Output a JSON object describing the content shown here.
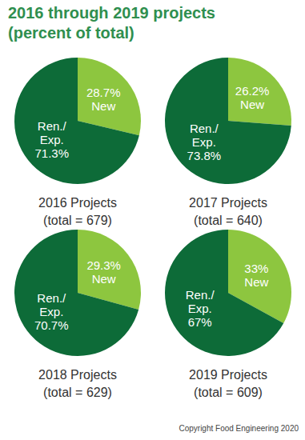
{
  "title": "2016 through 2019 projects (percent of total)",
  "copyright": "Copyright Food Engineering 2020",
  "chart_data": [
    {
      "type": "pie",
      "title": "2016 Projects",
      "subtitle": "(total = 679)",
      "categories": [
        "New",
        "Ren./ Exp."
      ],
      "values": [
        28.7,
        71.3
      ],
      "value_labels": [
        "28.7%",
        "71.3%"
      ],
      "colors": [
        "#8dc63f",
        "#0d6b38"
      ],
      "data_labels": true
    },
    {
      "type": "pie",
      "title": "2017 Projects",
      "subtitle": "(total = 640)",
      "categories": [
        "New",
        "Ren./ Exp."
      ],
      "values": [
        26.2,
        73.8
      ],
      "value_labels": [
        "26.2%",
        "73.8%"
      ],
      "colors": [
        "#8dc63f",
        "#0d6b38"
      ],
      "data_labels": true
    },
    {
      "type": "pie",
      "title": "2018 Projects",
      "subtitle": "(total = 629)",
      "categories": [
        "New",
        "Ren./ Exp."
      ],
      "values": [
        29.3,
        70.7
      ],
      "value_labels": [
        "29.3%",
        "70.7%"
      ],
      "colors": [
        "#8dc63f",
        "#0d6b38"
      ],
      "data_labels": true
    },
    {
      "type": "pie",
      "title": "2019 Projects",
      "subtitle": "(total = 609)",
      "categories": [
        "New",
        "Ren./ Exp."
      ],
      "values": [
        33,
        67
      ],
      "value_labels": [
        "33%",
        "67%"
      ],
      "colors": [
        "#8dc63f",
        "#0d6b38"
      ],
      "data_labels": true
    }
  ]
}
